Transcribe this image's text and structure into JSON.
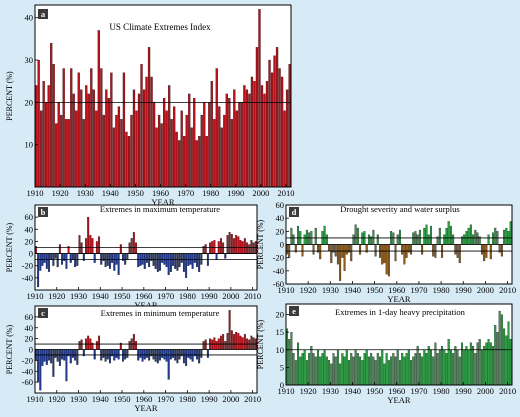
{
  "figure": {
    "colors": {
      "background": "#d7ebf7",
      "bar_red": "#b5121b",
      "bar_blue": "#223a8e",
      "bar_green": "#2e9a45",
      "bar_brown": "#8a5a1e"
    }
  },
  "chart_data": [
    {
      "panel": "a",
      "type": "bar",
      "title": "US Climate Extremes Index",
      "xlabel": "YEAR",
      "ylabel": "PERCENT (%)",
      "xlim": [
        1910,
        2012
      ],
      "ylim": [
        0,
        43
      ],
      "x_ticks": [
        1910,
        1920,
        1930,
        1940,
        1950,
        1960,
        1970,
        1980,
        1990,
        2000,
        2010
      ],
      "y_ticks": [
        10,
        20,
        30,
        40
      ],
      "reference_line": 20,
      "grid": false,
      "x": [
        1910,
        1911,
        1912,
        1913,
        1914,
        1915,
        1916,
        1917,
        1918,
        1919,
        1920,
        1921,
        1922,
        1923,
        1924,
        1925,
        1926,
        1927,
        1928,
        1929,
        1930,
        1931,
        1932,
        1933,
        1934,
        1935,
        1936,
        1937,
        1938,
        1939,
        1940,
        1941,
        1942,
        1943,
        1944,
        1945,
        1946,
        1947,
        1948,
        1949,
        1950,
        1951,
        1952,
        1953,
        1954,
        1955,
        1956,
        1957,
        1958,
        1959,
        1960,
        1961,
        1962,
        1963,
        1964,
        1965,
        1966,
        1967,
        1968,
        1969,
        1970,
        1971,
        1972,
        1973,
        1974,
        1975,
        1976,
        1977,
        1978,
        1979,
        1980,
        1981,
        1982,
        1983,
        1984,
        1985,
        1986,
        1987,
        1988,
        1989,
        1990,
        1991,
        1992,
        1993,
        1994,
        1995,
        1996,
        1997,
        1998,
        1999,
        2000,
        2001,
        2002,
        2003,
        2004,
        2005,
        2006,
        2007,
        2008,
        2009,
        2010,
        2011
      ],
      "values": [
        24,
        30,
        18,
        25,
        20,
        24,
        34,
        29,
        15,
        20,
        17,
        28,
        16,
        16,
        28,
        22,
        18,
        27,
        23,
        16,
        24,
        22,
        28,
        23,
        18,
        37,
        28,
        17,
        23,
        21,
        27,
        14,
        17,
        19,
        16,
        27,
        13,
        12,
        17,
        23,
        18,
        22,
        29,
        23,
        26,
        33,
        26,
        20,
        14,
        17,
        15,
        21,
        18,
        24,
        16,
        19,
        13,
        11,
        18,
        12,
        17,
        22,
        14,
        21,
        11,
        12,
        17,
        20,
        12,
        20,
        25,
        16,
        28,
        19,
        14,
        17,
        22,
        21,
        16,
        23,
        18,
        20,
        20,
        24,
        23,
        22,
        26,
        25,
        33,
        42,
        24,
        22,
        25,
        30,
        27,
        31,
        33,
        28,
        26,
        18,
        23,
        29
      ]
    },
    {
      "panel": "b",
      "type": "bar",
      "title": "Extremes in maximum temperature",
      "xlabel": "YEAR",
      "ylabel": "PERCENT (%)",
      "xlim": [
        1910,
        2012
      ],
      "ylim": [
        -60,
        80
      ],
      "x_ticks": [
        1910,
        1920,
        1930,
        1940,
        1950,
        1960,
        1970,
        1980,
        1990,
        2000,
        2010
      ],
      "y_ticks": [
        -40,
        -20,
        0,
        20,
        40,
        60
      ],
      "reference_lines": [
        -10,
        10
      ],
      "x": [
        1910,
        1911,
        1912,
        1913,
        1914,
        1915,
        1916,
        1917,
        1918,
        1919,
        1920,
        1921,
        1922,
        1923,
        1924,
        1925,
        1926,
        1927,
        1928,
        1929,
        1930,
        1931,
        1932,
        1933,
        1934,
        1935,
        1936,
        1937,
        1938,
        1939,
        1940,
        1941,
        1942,
        1943,
        1944,
        1945,
        1946,
        1947,
        1948,
        1949,
        1950,
        1951,
        1952,
        1953,
        1954,
        1955,
        1956,
        1957,
        1958,
        1959,
        1960,
        1961,
        1962,
        1963,
        1964,
        1965,
        1966,
        1967,
        1968,
        1969,
        1970,
        1971,
        1972,
        1973,
        1974,
        1975,
        1976,
        1977,
        1978,
        1979,
        1980,
        1981,
        1982,
        1983,
        1984,
        1985,
        1986,
        1987,
        1988,
        1989,
        1990,
        1991,
        1992,
        1993,
        1994,
        1995,
        1996,
        1997,
        1998,
        1999,
        2000,
        2001,
        2002,
        2003,
        2004,
        2005,
        2006,
        2007,
        2008,
        2009,
        2010,
        2011
      ],
      "values": [
        12,
        -55,
        -28,
        -20,
        -15,
        -25,
        -30,
        -10,
        -20,
        -8,
        -22,
        15,
        -18,
        -12,
        -25,
        12,
        -15,
        -10,
        -22,
        -20,
        30,
        18,
        -12,
        25,
        60,
        30,
        25,
        -15,
        20,
        28,
        -18,
        -12,
        -22,
        -20,
        -25,
        -15,
        -28,
        -18,
        -35,
        15,
        -12,
        -18,
        -10,
        18,
        25,
        35,
        18,
        -22,
        -20,
        -18,
        -25,
        -15,
        -22,
        -12,
        -20,
        -25,
        -30,
        -28,
        -15,
        -18,
        -22,
        -35,
        -30,
        -20,
        -25,
        -28,
        -22,
        -15,
        -30,
        -40,
        -20,
        -18,
        -25,
        -15,
        -22,
        -30,
        -18,
        12,
        15,
        -20,
        18,
        20,
        22,
        -10,
        20,
        25,
        18,
        -8,
        30,
        35,
        32,
        25,
        30,
        28,
        22,
        20,
        25,
        18,
        15,
        22,
        18,
        20
      ]
    },
    {
      "panel": "c",
      "type": "bar",
      "title": "Extremes in minimum temperature",
      "xlabel": "YEAR",
      "ylabel": "PERCENT (%)",
      "xlim": [
        1910,
        2012
      ],
      "ylim": [
        -80,
        80
      ],
      "x_ticks": [
        1910,
        1920,
        1930,
        1940,
        1950,
        1960,
        1970,
        1980,
        1990,
        2000,
        2010
      ],
      "y_ticks": [
        -60,
        -40,
        -20,
        0,
        20,
        40,
        60
      ],
      "reference_lines": [
        -10,
        10
      ],
      "x": [
        1910,
        1911,
        1912,
        1913,
        1914,
        1915,
        1916,
        1917,
        1918,
        1919,
        1920,
        1921,
        1922,
        1923,
        1924,
        1925,
        1926,
        1927,
        1928,
        1929,
        1930,
        1931,
        1932,
        1933,
        1934,
        1935,
        1936,
        1937,
        1938,
        1939,
        1940,
        1941,
        1942,
        1943,
        1944,
        1945,
        1946,
        1947,
        1948,
        1949,
        1950,
        1951,
        1952,
        1953,
        1954,
        1955,
        1956,
        1957,
        1958,
        1959,
        1960,
        1961,
        1962,
        1963,
        1964,
        1965,
        1966,
        1967,
        1968,
        1969,
        1970,
        1971,
        1972,
        1973,
        1974,
        1975,
        1976,
        1977,
        1978,
        1979,
        1980,
        1981,
        1982,
        1983,
        1984,
        1985,
        1986,
        1987,
        1988,
        1989,
        1990,
        1991,
        1992,
        1993,
        1994,
        1995,
        1996,
        1997,
        1998,
        1999,
        2000,
        2001,
        2002,
        2003,
        2004,
        2005,
        2006,
        2007,
        2008,
        2009,
        2010,
        2011
      ],
      "values": [
        -20,
        -60,
        -75,
        -30,
        -22,
        -28,
        -20,
        -25,
        -50,
        -15,
        -22,
        -30,
        -18,
        -20,
        -58,
        -12,
        -25,
        -15,
        -20,
        -28,
        15,
        18,
        -12,
        20,
        25,
        20,
        12,
        -18,
        15,
        25,
        -20,
        -15,
        -22,
        -18,
        -25,
        -12,
        -20,
        -15,
        -18,
        12,
        -22,
        -18,
        -15,
        15,
        20,
        28,
        15,
        -20,
        -15,
        -22,
        -18,
        -15,
        -20,
        -12,
        -18,
        -22,
        -25,
        -20,
        -15,
        -18,
        -22,
        -55,
        -18,
        -15,
        -20,
        -25,
        -18,
        -12,
        -25,
        -30,
        -15,
        -18,
        -22,
        -12,
        -18,
        -25,
        -15,
        15,
        18,
        -15,
        20,
        18,
        22,
        15,
        20,
        25,
        28,
        15,
        30,
        72,
        35,
        28,
        32,
        30,
        25,
        22,
        28,
        20,
        18,
        25,
        22,
        20
      ]
    },
    {
      "panel": "d",
      "type": "bar",
      "title": "Drought severity and water surplus",
      "xlabel": "YEAR",
      "ylabel": "PERCENT (%)",
      "xlim": [
        1910,
        2012
      ],
      "ylim": [
        -60,
        60
      ],
      "x_ticks": [
        1910,
        1920,
        1930,
        1940,
        1950,
        1960,
        1970,
        1980,
        1990,
        2000,
        2010
      ],
      "y_ticks": [
        -60,
        -40,
        -20,
        0,
        20,
        40,
        60
      ],
      "reference_lines": [
        -10,
        10
      ],
      "x": [
        1910,
        1911,
        1912,
        1913,
        1914,
        1915,
        1916,
        1917,
        1918,
        1919,
        1920,
        1921,
        1922,
        1923,
        1924,
        1925,
        1926,
        1927,
        1928,
        1929,
        1930,
        1931,
        1932,
        1933,
        1934,
        1935,
        1936,
        1937,
        1938,
        1939,
        1940,
        1941,
        1942,
        1943,
        1944,
        1945,
        1946,
        1947,
        1948,
        1949,
        1950,
        1951,
        1952,
        1953,
        1954,
        1955,
        1956,
        1957,
        1958,
        1959,
        1960,
        1961,
        1962,
        1963,
        1964,
        1965,
        1966,
        1967,
        1968,
        1969,
        1970,
        1971,
        1972,
        1973,
        1974,
        1975,
        1976,
        1977,
        1978,
        1979,
        1980,
        1981,
        1982,
        1983,
        1984,
        1985,
        1986,
        1987,
        1988,
        1989,
        1990,
        1991,
        1992,
        1993,
        1994,
        1995,
        1996,
        1997,
        1998,
        1999,
        2000,
        2001,
        2002,
        2003,
        2004,
        2005,
        2006,
        2007,
        2008,
        2009,
        2010,
        2011
      ],
      "values": [
        -15,
        -20,
        25,
        15,
        -12,
        28,
        20,
        -18,
        15,
        22,
        18,
        20,
        -15,
        25,
        -12,
        -22,
        20,
        28,
        15,
        -10,
        -28,
        -12,
        -18,
        -30,
        -55,
        -20,
        -40,
        -15,
        -12,
        -25,
        15,
        30,
        25,
        -15,
        18,
        20,
        -12,
        15,
        12,
        22,
        -18,
        15,
        -20,
        -30,
        -28,
        -45,
        -48,
        20,
        18,
        -25,
        15,
        22,
        -15,
        -30,
        -20,
        -12,
        -15,
        18,
        20,
        15,
        22,
        -15,
        25,
        30,
        15,
        28,
        -18,
        -20,
        12,
        25,
        -20,
        15,
        25,
        35,
        28,
        15,
        -15,
        -20,
        -28,
        12,
        15,
        20,
        25,
        30,
        15,
        22,
        18,
        12,
        -15,
        -25,
        -20,
        15,
        -22,
        18,
        25,
        20,
        -12,
        -18,
        22,
        25,
        20,
        35
      ]
    },
    {
      "panel": "e",
      "type": "bar",
      "title": "Extremes in 1-day heavy precipitation",
      "xlabel": "YEAR",
      "ylabel": "PERCENT (%)",
      "xlim": [
        1910,
        2012
      ],
      "ylim": [
        0,
        23
      ],
      "x_ticks": [
        1910,
        1920,
        1930,
        1940,
        1950,
        1960,
        1970,
        1980,
        1990,
        2000,
        2010
      ],
      "y_ticks": [
        0,
        5,
        10,
        15,
        20
      ],
      "reference_line": 10,
      "x": [
        1910,
        1911,
        1912,
        1913,
        1914,
        1915,
        1916,
        1917,
        1918,
        1919,
        1920,
        1921,
        1922,
        1923,
        1924,
        1925,
        1926,
        1927,
        1928,
        1929,
        1930,
        1931,
        1932,
        1933,
        1934,
        1935,
        1936,
        1937,
        1938,
        1939,
        1940,
        1941,
        1942,
        1943,
        1944,
        1945,
        1946,
        1947,
        1948,
        1949,
        1950,
        1951,
        1952,
        1953,
        1954,
        1955,
        1956,
        1957,
        1958,
        1959,
        1960,
        1961,
        1962,
        1963,
        1964,
        1965,
        1966,
        1967,
        1968,
        1969,
        1970,
        1971,
        1972,
        1973,
        1974,
        1975,
        1976,
        1977,
        1978,
        1979,
        1980,
        1981,
        1982,
        1983,
        1984,
        1985,
        1986,
        1987,
        1988,
        1989,
        1990,
        1991,
        1992,
        1993,
        1994,
        1995,
        1996,
        1997,
        1998,
        1999,
        2000,
        2001,
        2002,
        2003,
        2004,
        2005,
        2006,
        2007,
        2008,
        2009,
        2010,
        2011
      ],
      "values": [
        16,
        13,
        15,
        9,
        7,
        12,
        8,
        9,
        10,
        7,
        9,
        11,
        9,
        8,
        10,
        8,
        9,
        10,
        8,
        7,
        6,
        9,
        8,
        10,
        6,
        9,
        8,
        10,
        7,
        9,
        8,
        10,
        9,
        8,
        7,
        9,
        10,
        8,
        9,
        8,
        7,
        9,
        8,
        10,
        6,
        9,
        7,
        8,
        9,
        8,
        10,
        7,
        9,
        8,
        9,
        10,
        7,
        8,
        9,
        11,
        9,
        8,
        10,
        9,
        11,
        10,
        8,
        12,
        9,
        10,
        11,
        10,
        9,
        13,
        10,
        9,
        11,
        10,
        8,
        12,
        10,
        11,
        10,
        12,
        11,
        9,
        12,
        13,
        10,
        11,
        12,
        13,
        12,
        11,
        17,
        15,
        21,
        20,
        16,
        14,
        18,
        13
      ]
    }
  ]
}
